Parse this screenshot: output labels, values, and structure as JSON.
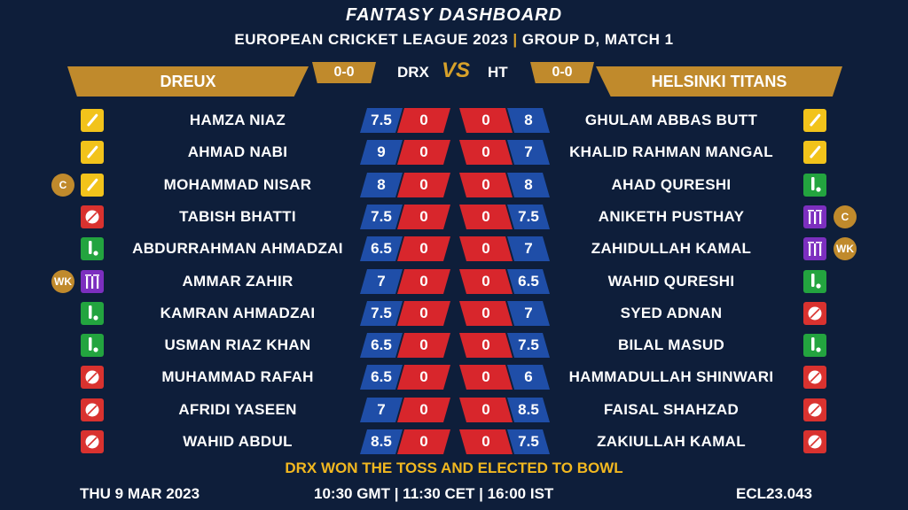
{
  "header": {
    "title": "FANTASY DASHBOARD",
    "league": "EUROPEAN CRICKET LEAGUE 2023",
    "separator": "|",
    "match": "GROUP D, MATCH 1"
  },
  "teams": {
    "left": {
      "name": "DREUX",
      "abbr": "DRX",
      "score": "0-0"
    },
    "right": {
      "name": "HELSINKI TITANS",
      "abbr": "HT",
      "score": "0-0"
    },
    "vs": "VS"
  },
  "colors": {
    "background": "#0e1e3a",
    "gold": "#c08a2c",
    "blue": "#1f4ea8",
    "red": "#d8262c",
    "toss": "#f2b820"
  },
  "left_players": [
    {
      "name": "HAMZA NIAZ",
      "role": "bat-icon",
      "credit": "7.5",
      "points": "0",
      "badge": ""
    },
    {
      "name": "AHMAD NABI",
      "role": "bat-icon",
      "credit": "9",
      "points": "0",
      "badge": ""
    },
    {
      "name": "MOHAMMAD NISAR",
      "role": "bat-icon",
      "credit": "8",
      "points": "0",
      "badge": "C"
    },
    {
      "name": "TABISH BHATTI",
      "role": "ball-icon",
      "credit": "7.5",
      "points": "0",
      "badge": ""
    },
    {
      "name": "ABDURRAHMAN AHMADZAI",
      "role": "allrounder-icon",
      "credit": "6.5",
      "points": "0",
      "badge": ""
    },
    {
      "name": "AMMAR ZAHIR",
      "role": "wicket-icon",
      "credit": "7",
      "points": "0",
      "badge": "WK"
    },
    {
      "name": "KAMRAN AHMADZAI",
      "role": "allrounder-icon",
      "credit": "7.5",
      "points": "0",
      "badge": ""
    },
    {
      "name": "USMAN RIAZ KHAN",
      "role": "allrounder-icon",
      "credit": "6.5",
      "points": "0",
      "badge": ""
    },
    {
      "name": "MUHAMMAD RAFAH",
      "role": "ball-icon",
      "credit": "6.5",
      "points": "0",
      "badge": ""
    },
    {
      "name": "AFRIDI YASEEN",
      "role": "ball-icon",
      "credit": "7",
      "points": "0",
      "badge": ""
    },
    {
      "name": "WAHID ABDUL",
      "role": "ball-icon",
      "credit": "8.5",
      "points": "0",
      "badge": ""
    }
  ],
  "right_players": [
    {
      "name": "GHULAM ABBAS BUTT",
      "role": "bat-icon",
      "credit": "8",
      "points": "0",
      "badge": ""
    },
    {
      "name": "KHALID RAHMAN MANGAL",
      "role": "bat-icon",
      "credit": "7",
      "points": "0",
      "badge": ""
    },
    {
      "name": "AHAD QURESHI",
      "role": "allrounder-icon",
      "credit": "8",
      "points": "0",
      "badge": ""
    },
    {
      "name": "ANIKETH PUSTHAY",
      "role": "wicket-icon",
      "credit": "7.5",
      "points": "0",
      "badge": "C"
    },
    {
      "name": "ZAHIDULLAH KAMAL",
      "role": "wicket-icon",
      "credit": "7",
      "points": "0",
      "badge": "WK"
    },
    {
      "name": "WAHID QURESHI",
      "role": "allrounder-icon",
      "credit": "6.5",
      "points": "0",
      "badge": ""
    },
    {
      "name": "SYED ADNAN",
      "role": "ball-icon",
      "credit": "7",
      "points": "0",
      "badge": ""
    },
    {
      "name": "BILAL MASUD",
      "role": "allrounder-icon",
      "credit": "7.5",
      "points": "0",
      "badge": ""
    },
    {
      "name": "HAMMADULLAH SHINWARI",
      "role": "ball-icon",
      "credit": "6",
      "points": "0",
      "badge": ""
    },
    {
      "name": "FAISAL SHAHZAD",
      "role": "ball-icon",
      "credit": "8.5",
      "points": "0",
      "badge": ""
    },
    {
      "name": "ZAKIULLAH KAMAL",
      "role": "ball-icon",
      "credit": "7.5",
      "points": "0",
      "badge": ""
    }
  ],
  "toss": "DRX WON THE TOSS AND ELECTED TO BOWL",
  "footer": {
    "date": "THU 9 MAR 2023",
    "time": "10:30 GMT | 11:30 CET | 16:00 IST",
    "code": "ECL23.043"
  }
}
